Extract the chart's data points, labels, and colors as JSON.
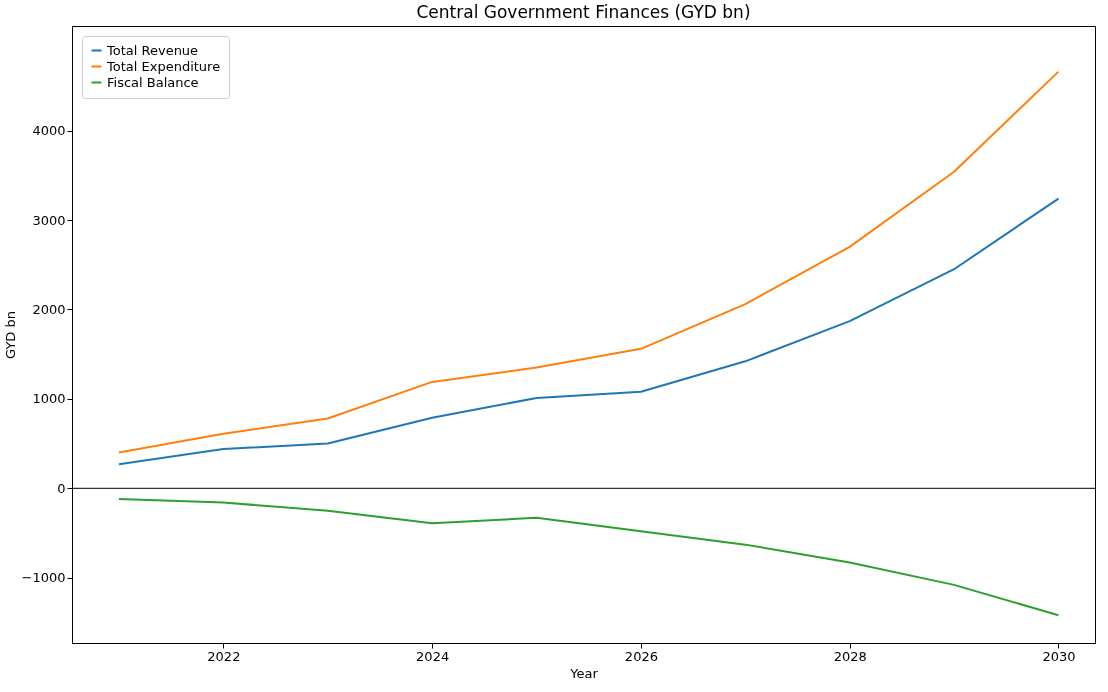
{
  "chart_data": {
    "type": "line",
    "title": "Central Government Finances (GYD bn)",
    "xlabel": "Year",
    "ylabel": "GYD bn",
    "x": [
      2021,
      2022,
      2023,
      2024,
      2025,
      2026,
      2027,
      2028,
      2029,
      2030
    ],
    "series": [
      {
        "name": "Total Revenue",
        "color": "#1f77b4",
        "values": [
          270,
          440,
          500,
          790,
          1010,
          1080,
          1420,
          1870,
          2450,
          3240
        ]
      },
      {
        "name": "Total Expenditure",
        "color": "#ff7f0e",
        "values": [
          400,
          610,
          780,
          1190,
          1350,
          1560,
          2060,
          2700,
          3540,
          4660
        ]
      },
      {
        "name": "Fiscal Balance",
        "color": "#2ca02c",
        "values": [
          -120,
          -160,
          -250,
          -390,
          -330,
          -480,
          -630,
          -830,
          -1080,
          -1420
        ]
      }
    ],
    "xlim": [
      2020.55,
      2030.35
    ],
    "ylim": [
      -1730,
      5170
    ],
    "xticks": [
      2022,
      2024,
      2026,
      2028,
      2030
    ],
    "yticks": [
      -1000,
      0,
      1000,
      2000,
      3000,
      4000
    ],
    "ref_lines": [
      {
        "axis": "y",
        "value": 0,
        "color": "#000000"
      }
    ],
    "grid": false,
    "legend": "top left",
    "line_style": "solid",
    "marker": "none"
  }
}
